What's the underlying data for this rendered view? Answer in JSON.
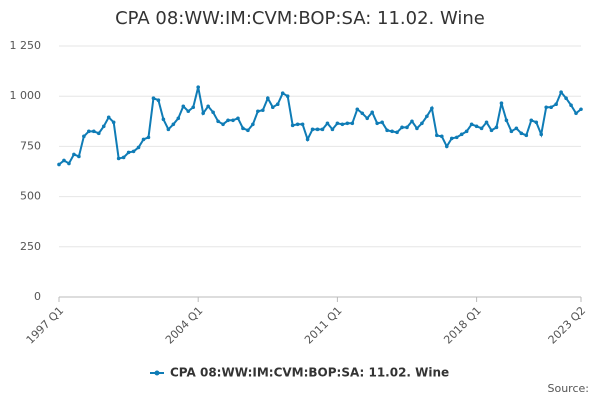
{
  "chart_data": {
    "type": "line",
    "title": "CPA 08:WW:IM:CVM:BOP:SA: 11.02. Wine",
    "source": "Source:",
    "categories": [
      "1997 Q1",
      null,
      null,
      null,
      null,
      null,
      null,
      null,
      null,
      null,
      null,
      null,
      null,
      null,
      null,
      null,
      null,
      null,
      null,
      null,
      null,
      null,
      null,
      null,
      null,
      null,
      null,
      null,
      "2004 Q1",
      null,
      null,
      null,
      null,
      null,
      null,
      null,
      null,
      null,
      null,
      null,
      null,
      null,
      null,
      null,
      null,
      null,
      null,
      null,
      null,
      null,
      null,
      null,
      null,
      null,
      null,
      null,
      "2011 Q1",
      null,
      null,
      null,
      null,
      null,
      null,
      null,
      null,
      null,
      null,
      null,
      null,
      null,
      null,
      null,
      null,
      null,
      null,
      null,
      null,
      null,
      null,
      null,
      null,
      null,
      null,
      null,
      "2018 Q1",
      null,
      null,
      null,
      null,
      null,
      null,
      null,
      null,
      null,
      null,
      null,
      null,
      null,
      null,
      null,
      null,
      null,
      null,
      null,
      null,
      "2023 Q2"
    ],
    "series": [
      {
        "name": "CPA 08:WW:IM:CVM:BOP:SA: 11.02. Wine",
        "color": "#0f7cb6",
        "values": [
          660,
          680,
          665,
          710,
          700,
          800,
          825,
          825,
          815,
          850,
          895,
          870,
          690,
          695,
          720,
          725,
          745,
          785,
          795,
          990,
          980,
          885,
          835,
          860,
          890,
          950,
          925,
          945,
          1045,
          915,
          950,
          920,
          875,
          860,
          880,
          880,
          890,
          840,
          830,
          860,
          925,
          930,
          990,
          945,
          960,
          1015,
          1000,
          855,
          860,
          860,
          785,
          835,
          835,
          835,
          865,
          835,
          865,
          860,
          865,
          865,
          935,
          915,
          890,
          920,
          865,
          870,
          830,
          825,
          820,
          845,
          845,
          875,
          840,
          865,
          900,
          940,
          805,
          800,
          750,
          790,
          795,
          810,
          825,
          860,
          850,
          840,
          870,
          830,
          845,
          965,
          880,
          825,
          840,
          815,
          805,
          880,
          870,
          810,
          945,
          945,
          960,
          1020,
          990,
          955,
          915,
          935
        ]
      }
    ],
    "ylim": [
      0,
      1250
    ],
    "yticks": [
      0,
      250,
      500,
      750,
      {
        "value": 1000,
        "label": "1 000"
      },
      {
        "value": 1250,
        "label": "1 250"
      }
    ],
    "grid": true,
    "legend": "bottom"
  }
}
